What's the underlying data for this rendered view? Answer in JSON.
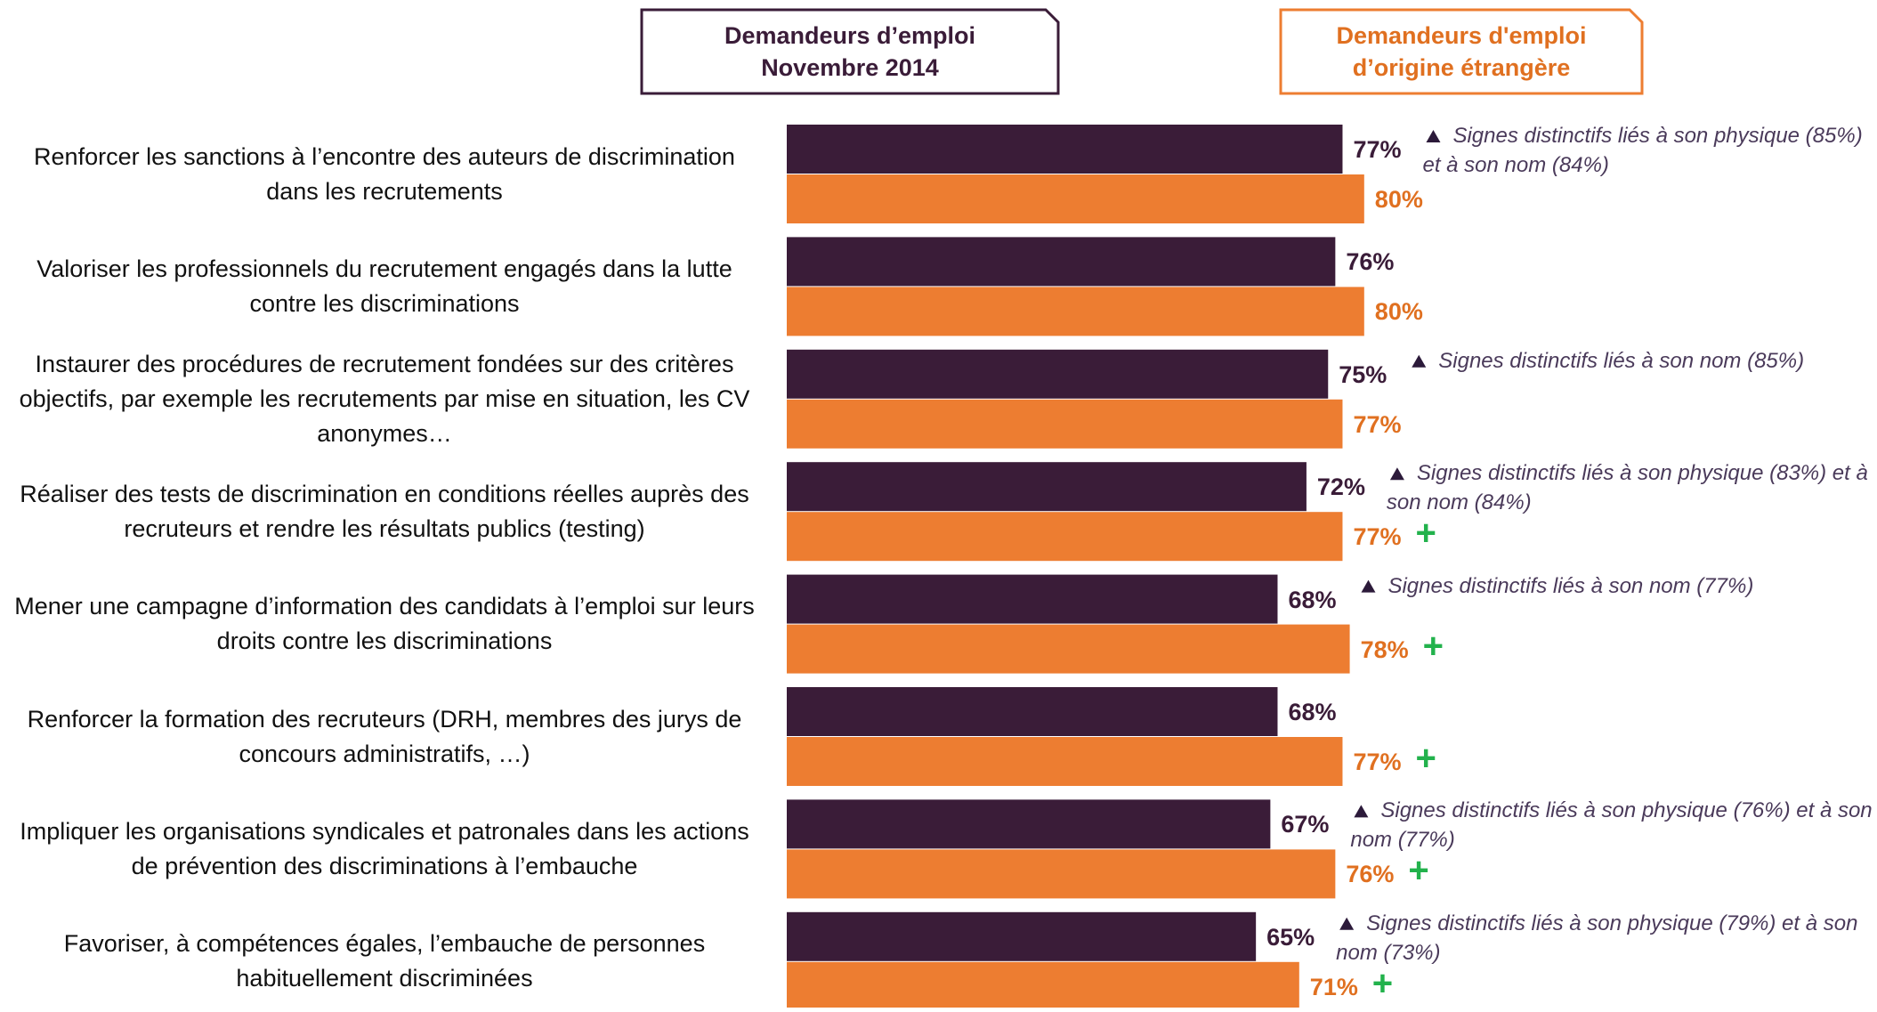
{
  "chart_data": {
    "type": "bar",
    "orientation": "horizontal",
    "categories": [
      "Renforcer les sanctions à l’encontre des auteurs de discrimination dans les recrutements",
      "Valoriser les professionnels du recrutement engagés dans la lutte contre les discriminations",
      "Instaurer des procédures de recrutement fondées sur des critères objectifs, par exemple les recrutements par mise en situation, les CV anonymes…",
      "Réaliser des tests de discrimination en conditions réelles auprès des recruteurs et rendre les résultats publics (testing)",
      "Mener une campagne d’information des candidats à l’emploi sur leurs droits contre les discriminations",
      "Renforcer la formation des recruteurs (DRH, membres des jurys de concours administratifs, …)",
      "Impliquer les organisations syndicales et patronales dans les actions de prévention des discriminations à l’embauche",
      "Favoriser, à compétences égales, l’embauche de personnes habituellement discriminées"
    ],
    "series": [
      {
        "name": "Demandeurs d’emploi Novembre 2014",
        "color": "#3a1c38",
        "values": [
          77,
          76,
          75,
          72,
          68,
          68,
          67,
          65
        ],
        "value_labels": [
          "77%",
          "76%",
          "75%",
          "72%",
          "68%",
          "68%",
          "67%",
          "65%"
        ]
      },
      {
        "name": "Demandeurs d'emploi d’origine étrangère",
        "color": "#ed7d31",
        "values": [
          80,
          80,
          77,
          77,
          78,
          77,
          76,
          71
        ],
        "value_labels": [
          "80%",
          "80%",
          "77%",
          "77%",
          "78%",
          "77%",
          "76%",
          "71%"
        ]
      }
    ],
    "annotations": [
      "Signes distinctifs liés à son physique (85%) et à son nom (84%)",
      null,
      "Signes distinctifs liés à son nom (85%)",
      "Signes distinctifs liés à son physique (83%) et à son nom (84%)",
      "Signes distinctifs liés à son nom (77%)",
      null,
      "Signes distinctifs liés à son physique (76%) et à son nom (77%)",
      "Signes distinctifs liés à son physique (79%) et à son nom (73%)"
    ],
    "significance_marks": [
      null,
      null,
      null,
      "+",
      "+",
      "+",
      "+",
      "+"
    ],
    "xlim": [
      0,
      100
    ]
  }
}
